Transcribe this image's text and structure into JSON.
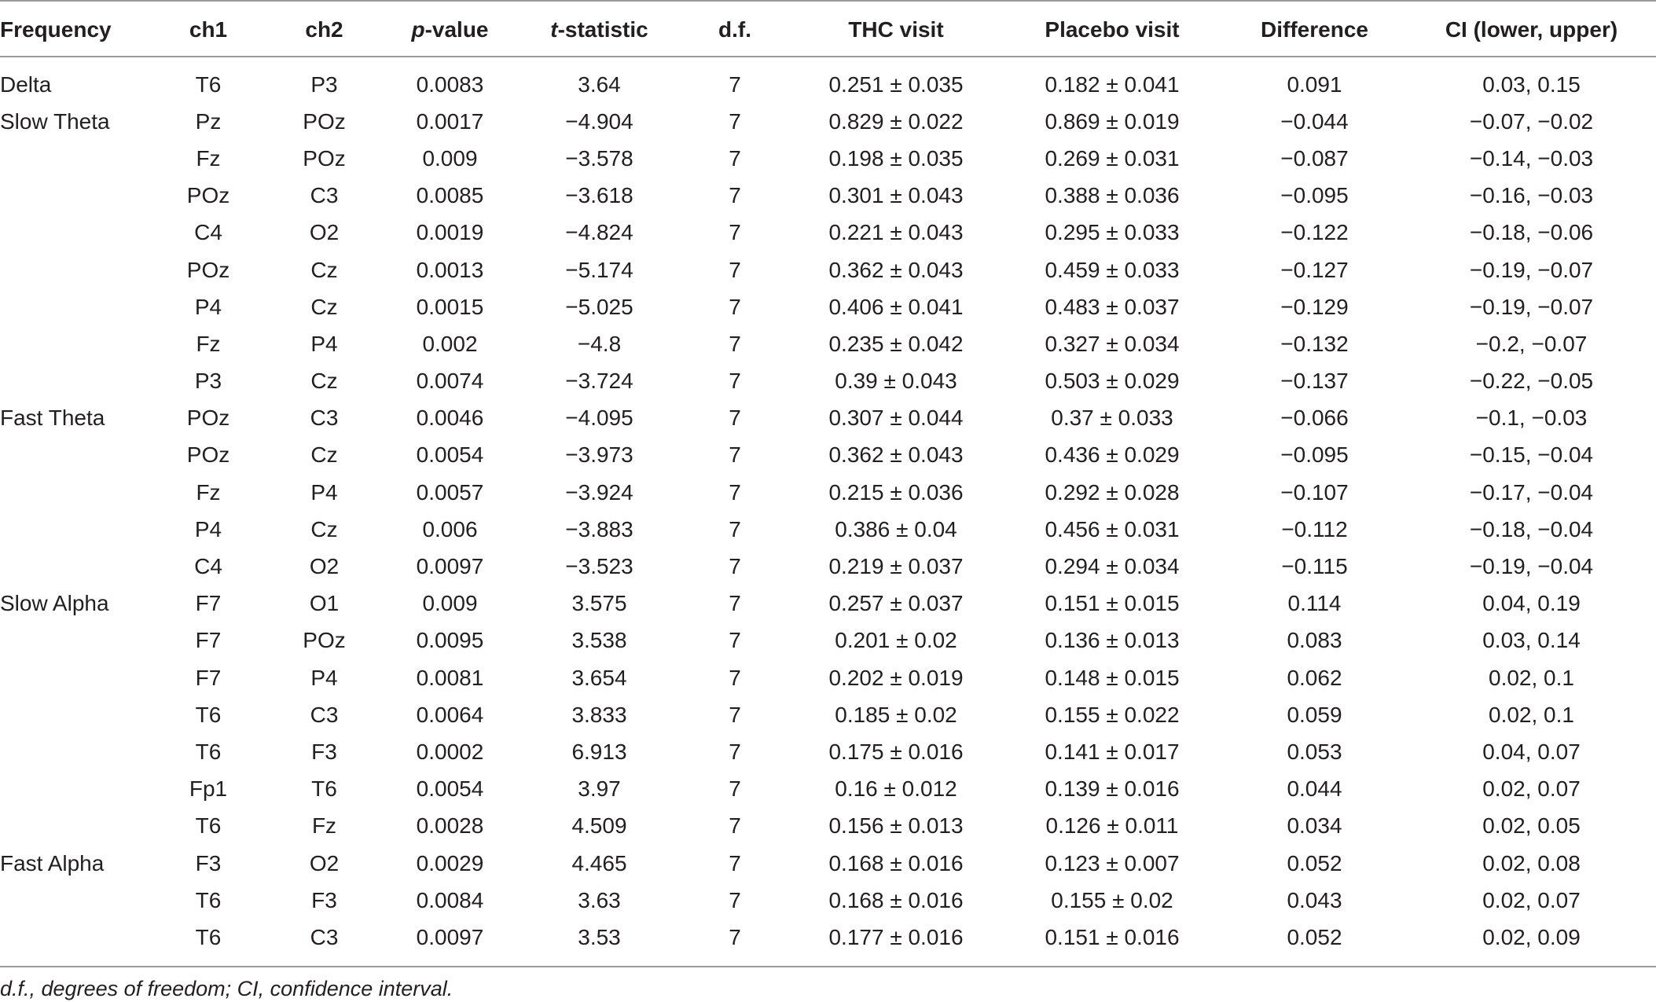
{
  "table": {
    "columns": [
      {
        "prefix": "",
        "italic": "",
        "suffix": "Frequency"
      },
      {
        "prefix": "",
        "italic": "",
        "suffix": "ch1"
      },
      {
        "prefix": "",
        "italic": "",
        "suffix": "ch2"
      },
      {
        "prefix": "",
        "italic": "p",
        "suffix": "-value"
      },
      {
        "prefix": "",
        "italic": "t",
        "suffix": "-statistic"
      },
      {
        "prefix": "",
        "italic": "",
        "suffix": "d.f."
      },
      {
        "prefix": "",
        "italic": "",
        "suffix": "THC visit"
      },
      {
        "prefix": "",
        "italic": "",
        "suffix": "Placebo visit"
      },
      {
        "prefix": "",
        "italic": "",
        "suffix": "Difference"
      },
      {
        "prefix": "",
        "italic": "",
        "suffix": "CI (lower, upper)"
      }
    ],
    "rows": [
      [
        "Delta",
        "T6",
        "P3",
        "0.0083",
        "3.64",
        "7",
        "0.251 ± 0.035",
        "0.182 ± 0.041",
        "0.091",
        "0.03, 0.15"
      ],
      [
        "Slow Theta",
        "Pz",
        "POz",
        "0.0017",
        "−4.904",
        "7",
        "0.829 ± 0.022",
        "0.869 ± 0.019",
        "−0.044",
        "−0.07, −0.02"
      ],
      [
        "",
        "Fz",
        "POz",
        "0.009",
        "−3.578",
        "7",
        "0.198 ± 0.035",
        "0.269 ± 0.031",
        "−0.087",
        "−0.14, −0.03"
      ],
      [
        "",
        "POz",
        "C3",
        "0.0085",
        "−3.618",
        "7",
        "0.301 ± 0.043",
        "0.388 ± 0.036",
        "−0.095",
        "−0.16, −0.03"
      ],
      [
        "",
        "C4",
        "O2",
        "0.0019",
        "−4.824",
        "7",
        "0.221 ± 0.043",
        "0.295 ± 0.033",
        "−0.122",
        "−0.18, −0.06"
      ],
      [
        "",
        "POz",
        "Cz",
        "0.0013",
        "−5.174",
        "7",
        "0.362 ± 0.043",
        "0.459 ± 0.033",
        "−0.127",
        "−0.19, −0.07"
      ],
      [
        "",
        "P4",
        "Cz",
        "0.0015",
        "−5.025",
        "7",
        "0.406 ± 0.041",
        "0.483 ± 0.037",
        "−0.129",
        "−0.19, −0.07"
      ],
      [
        "",
        "Fz",
        "P4",
        "0.002",
        "−4.8",
        "7",
        "0.235 ± 0.042",
        "0.327 ± 0.034",
        "−0.132",
        "−0.2, −0.07"
      ],
      [
        "",
        "P3",
        "Cz",
        "0.0074",
        "−3.724",
        "7",
        "0.39 ± 0.043",
        "0.503 ± 0.029",
        "−0.137",
        "−0.22, −0.05"
      ],
      [
        "Fast Theta",
        "POz",
        "C3",
        "0.0046",
        "−4.095",
        "7",
        "0.307 ± 0.044",
        "0.37 ± 0.033",
        "−0.066",
        "−0.1, −0.03"
      ],
      [
        "",
        "POz",
        "Cz",
        "0.0054",
        "−3.973",
        "7",
        "0.362 ± 0.043",
        "0.436 ± 0.029",
        "−0.095",
        "−0.15, −0.04"
      ],
      [
        "",
        "Fz",
        "P4",
        "0.0057",
        "−3.924",
        "7",
        "0.215 ± 0.036",
        "0.292 ± 0.028",
        "−0.107",
        "−0.17, −0.04"
      ],
      [
        "",
        "P4",
        "Cz",
        "0.006",
        "−3.883",
        "7",
        "0.386 ± 0.04",
        "0.456 ± 0.031",
        "−0.112",
        "−0.18, −0.04"
      ],
      [
        "",
        "C4",
        "O2",
        "0.0097",
        "−3.523",
        "7",
        "0.219 ± 0.037",
        "0.294 ± 0.034",
        "−0.115",
        "−0.19, −0.04"
      ],
      [
        "Slow Alpha",
        "F7",
        "O1",
        "0.009",
        "3.575",
        "7",
        "0.257 ± 0.037",
        "0.151 ± 0.015",
        "0.114",
        "0.04, 0.19"
      ],
      [
        "",
        "F7",
        "POz",
        "0.0095",
        "3.538",
        "7",
        "0.201 ± 0.02",
        "0.136 ± 0.013",
        "0.083",
        "0.03, 0.14"
      ],
      [
        "",
        "F7",
        "P4",
        "0.0081",
        "3.654",
        "7",
        "0.202 ± 0.019",
        "0.148 ± 0.015",
        "0.062",
        "0.02, 0.1"
      ],
      [
        "",
        "T6",
        "C3",
        "0.0064",
        "3.833",
        "7",
        "0.185 ± 0.02",
        "0.155 ± 0.022",
        "0.059",
        "0.02, 0.1"
      ],
      [
        "",
        "T6",
        "F3",
        "0.0002",
        "6.913",
        "7",
        "0.175 ± 0.016",
        "0.141 ± 0.017",
        "0.053",
        "0.04, 0.07"
      ],
      [
        "",
        "Fp1",
        "T6",
        "0.0054",
        "3.97",
        "7",
        "0.16 ± 0.012",
        "0.139 ± 0.016",
        "0.044",
        "0.02, 0.07"
      ],
      [
        "",
        "T6",
        "Fz",
        "0.0028",
        "4.509",
        "7",
        "0.156 ± 0.013",
        "0.126 ± 0.011",
        "0.034",
        "0.02, 0.05"
      ],
      [
        "Fast Alpha",
        "F3",
        "O2",
        "0.0029",
        "4.465",
        "7",
        "0.168 ± 0.016",
        "0.123 ± 0.007",
        "0.052",
        "0.02, 0.08"
      ],
      [
        "",
        "T6",
        "F3",
        "0.0084",
        "3.63",
        "7",
        "0.168 ± 0.016",
        "0.155 ± 0.02",
        "0.043",
        "0.02, 0.07"
      ],
      [
        "",
        "T6",
        "C3",
        "0.0097",
        "3.53",
        "7",
        "0.177 ± 0.016",
        "0.151 ± 0.016",
        "0.052",
        "0.02, 0.09"
      ]
    ]
  },
  "footnote": "d.f., degrees of freedom; CI, confidence interval."
}
